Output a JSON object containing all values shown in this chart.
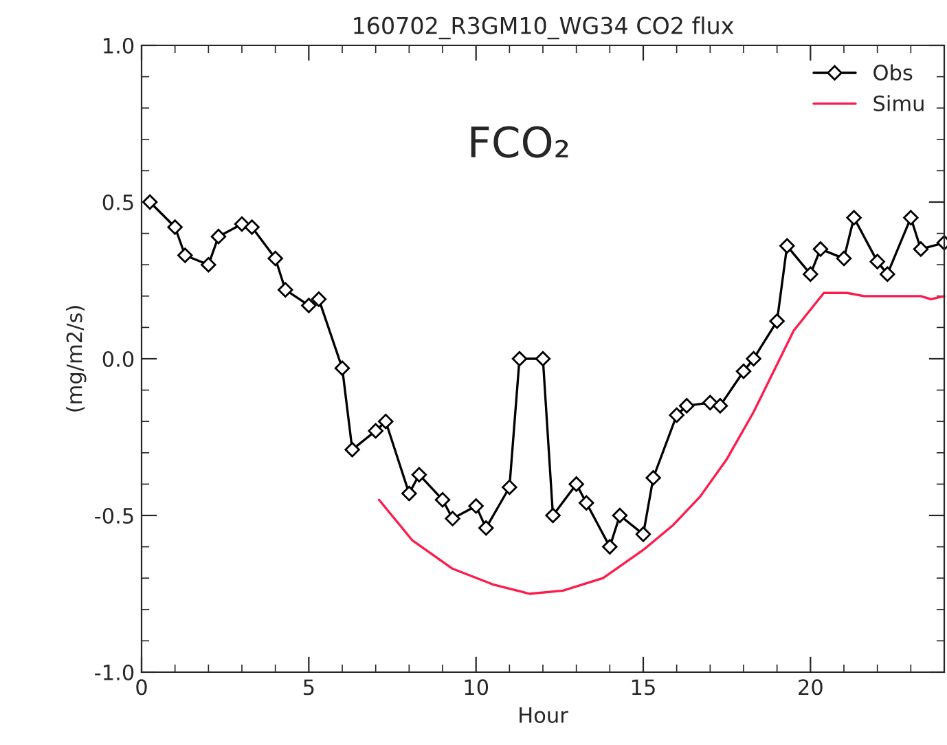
{
  "chart_data": {
    "type": "line",
    "title": "160702_R3GM10_WG34 CO2 flux",
    "xlabel": "Hour",
    "ylabel": "(mg/m2/s)",
    "xlim": [
      0,
      24
    ],
    "ylim": [
      -1.0,
      1.0
    ],
    "xticks": [
      0,
      5,
      10,
      15,
      20
    ],
    "yticks": [
      {
        "value": -1.0,
        "label": "-1.0"
      },
      {
        "value": -0.5,
        "label": "-0.5"
      },
      {
        "value": 0.0,
        "label": "0.0"
      },
      {
        "value": 0.5,
        "label": "0.5"
      },
      {
        "value": 1.0,
        "label": "1.0"
      }
    ],
    "grid": false,
    "legend": "top right",
    "annotations": [
      "FCO₂"
    ],
    "series": [
      {
        "name": "Obs",
        "color": "#000000",
        "marker": "diamond",
        "line_style": "solid",
        "x": [
          0.25,
          1.0,
          1.3,
          2.0,
          2.3,
          3.0,
          3.3,
          4.0,
          4.3,
          5.0,
          5.3,
          6.0,
          6.3,
          7.0,
          7.3,
          8.0,
          8.3,
          9.0,
          9.3,
          10.0,
          10.3,
          11.0,
          11.3,
          12.0,
          12.3,
          13.0,
          13.3,
          14.0,
          14.3,
          15.0,
          15.3,
          16.0,
          16.3,
          17.0,
          17.3,
          18.0,
          18.3,
          19.0,
          19.3,
          20.0,
          20.3,
          21.0,
          21.3,
          22.0,
          22.3,
          23.0,
          23.3,
          24.0
        ],
        "values": [
          0.5,
          0.42,
          0.33,
          0.3,
          0.39,
          0.43,
          0.42,
          0.32,
          0.22,
          0.17,
          0.19,
          -0.03,
          -0.29,
          -0.23,
          -0.2,
          -0.43,
          -0.37,
          -0.45,
          -0.51,
          -0.47,
          -0.54,
          -0.41,
          0.0,
          0.0,
          -0.5,
          -0.4,
          -0.46,
          -0.6,
          -0.5,
          -0.56,
          -0.38,
          -0.18,
          -0.15,
          -0.14,
          -0.15,
          -0.04,
          0.0,
          0.12,
          0.36,
          0.27,
          0.35,
          0.32,
          0.45,
          0.31,
          0.27,
          0.45,
          0.35,
          0.37
        ]
      },
      {
        "name": "Simu",
        "color": "#ff1a4a",
        "marker": "none",
        "line_style": "solid",
        "x": [
          7.1,
          8.1,
          9.3,
          10.5,
          11.6,
          12.6,
          13.8,
          15.0,
          15.9,
          16.7,
          17.5,
          18.3,
          18.9,
          19.5,
          20.4,
          21.1,
          21.6,
          23.3,
          23.6,
          24.0
        ],
        "values": [
          -0.45,
          -0.58,
          -0.67,
          -0.72,
          -0.75,
          -0.74,
          -0.7,
          -0.61,
          -0.53,
          -0.44,
          -0.32,
          -0.17,
          -0.04,
          0.09,
          0.21,
          0.21,
          0.2,
          0.2,
          0.19,
          0.2
        ]
      }
    ]
  }
}
